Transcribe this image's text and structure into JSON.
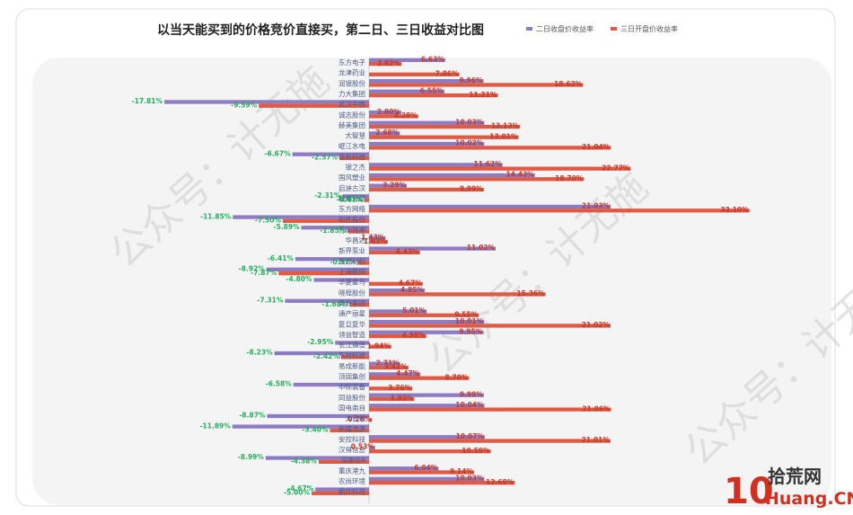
{
  "chart_data": {
    "type": "bar",
    "orientation": "horizontal",
    "title": "以当天能买到的价格竞价直接买，第二日、三日收益对比图",
    "legend_position": "top-right",
    "value_format": "percent",
    "categories": [
      "东方电子",
      "龙津药业",
      "润银股份",
      "力大集团",
      "武汉中商",
      "诚志股份",
      "赫美集团",
      "大智慧",
      "岷江水电",
      "德新科技",
      "银之杰",
      "国风塑业",
      "启迪古汉",
      "联络互动",
      "东方网络",
      "和胜股份",
      "万向钱潮",
      "华昌达",
      "新界泵业",
      "西部材料",
      "上海新阳",
      "华菱星马",
      "晓程股份",
      "英特集团",
      "通产丽星",
      "复旦复华",
      "领益智造",
      "长江通信",
      "东材科技",
      "易成新能",
      "顶固集创",
      "中际装备",
      "同益股份",
      "国电南自",
      "大名城",
      "新疆浩源",
      "安控科技",
      "汉得信息",
      "深康佳A",
      "重庆港九",
      "农尚环境",
      "鹏欣科技"
    ],
    "series": [
      {
        "name": "二日收盘价收益率",
        "color": "#8e7cc3",
        "values": [
          6.63,
          null,
          null,
          null,
          -17.81,
          null,
          null,
          null,
          null,
          -6.67,
          null,
          null,
          null,
          -2.31,
          null,
          -11.85,
          -5.89,
          null,
          null,
          -6.41,
          -8.92,
          -4.8,
          null,
          -7.31,
          null,
          null,
          null,
          -2.95,
          -8.23,
          null,
          null,
          -6.58,
          null,
          null,
          -8.87,
          -11.89,
          null,
          null,
          -8.99,
          null,
          null,
          -4.67
        ]
      },
      {
        "name": "三日开盘价收益率",
        "color": "#e05a44",
        "values": [
          2.82,
          7.86,
          18.62,
          11.21,
          -9.59,
          4.28,
          13.13,
          13.01,
          21.04,
          -2.57,
          22.77,
          18.7,
          9.99,
          -0.41,
          33.1,
          -7.5,
          -1.85,
          1.63,
          4.43,
          -0.97,
          -7.87,
          4.67,
          15.36,
          -1.68,
          9.55,
          21.02,
          4.98,
          1.94,
          -2.42,
          3.42,
          8.7,
          3.76,
          3.93,
          21.06,
          0.26,
          -3.4,
          21.01,
          10.59,
          -4.38,
          9.14,
          12.68,
          -5.0
        ]
      }
    ],
    "extra_labels": [
      {
        "label": "6.55%",
        "row": 3,
        "series": 0,
        "value": 6.55
      },
      {
        "label": "9.96%",
        "row": 2,
        "series": 0,
        "value": 9.96
      },
      {
        "label": "2.80%",
        "row": 5,
        "series": 0,
        "value": 2.8
      },
      {
        "label": "10.03%",
        "row": 6,
        "series": 0,
        "value": 10.03
      },
      {
        "label": "2.68%",
        "row": 7,
        "series": 0,
        "value": 2.68
      },
      {
        "label": "10.02%",
        "row": 8,
        "series": 0,
        "value": 10.02
      },
      {
        "label": "11.62%",
        "row": 10,
        "series": 0,
        "value": 11.62
      },
      {
        "label": "14.43%",
        "row": 11,
        "series": 0,
        "value": 14.43
      },
      {
        "label": "3.29%",
        "row": 12,
        "series": 0,
        "value": 3.29
      },
      {
        "label": "21.03%",
        "row": 14,
        "series": 0,
        "value": 21.03
      },
      {
        "label": "1.43%",
        "row": 17,
        "series": 0,
        "value": 1.43
      },
      {
        "label": "11.02%",
        "row": 18,
        "series": 0,
        "value": 11.02
      },
      {
        "label": "4.85%",
        "row": 22,
        "series": 0,
        "value": 4.85
      },
      {
        "label": "5.01%",
        "row": 24,
        "series": 0,
        "value": 5.01
      },
      {
        "label": "10.01%",
        "row": 25,
        "series": 0,
        "value": 10.01
      },
      {
        "label": "9.95%",
        "row": 26,
        "series": 0,
        "value": 9.95
      },
      {
        "label": "2.71%",
        "row": 29,
        "series": 0,
        "value": 2.71
      },
      {
        "label": "4.47%",
        "row": 30,
        "series": 0,
        "value": 4.47
      },
      {
        "label": "9.99%",
        "row": 32,
        "series": 0,
        "value": 9.99
      },
      {
        "label": "10.04%",
        "row": 33,
        "series": 0,
        "value": 10.04
      },
      {
        "label": "10.07%",
        "row": 36,
        "series": 0,
        "value": 10.07
      },
      {
        "label": "0.53%",
        "row": 37,
        "series": 0,
        "value": 0.53
      },
      {
        "label": "6.04%",
        "row": 39,
        "series": 0,
        "value": 6.04
      },
      {
        "label": "10.03%",
        "row": 40,
        "series": 0,
        "value": 10.03
      },
      {
        "label": "-0.41%",
        "row": 13,
        "series": 1,
        "value": -0.41
      }
    ],
    "xlim": [
      -20,
      35
    ],
    "grid": false
  },
  "watermarks": [
    "公众号：计无施",
    "公众号：计无施",
    "公众号：计无施"
  ],
  "brand": {
    "logo_number": "10",
    "logo_cn": "拾荒网",
    "logo_domain": "Huang.CN"
  },
  "colors": {
    "positive_label": "#c0392b",
    "negative_label": "#27ae60",
    "bar_top": "#8e7cc3",
    "bar_bottom": "#e05a44"
  }
}
